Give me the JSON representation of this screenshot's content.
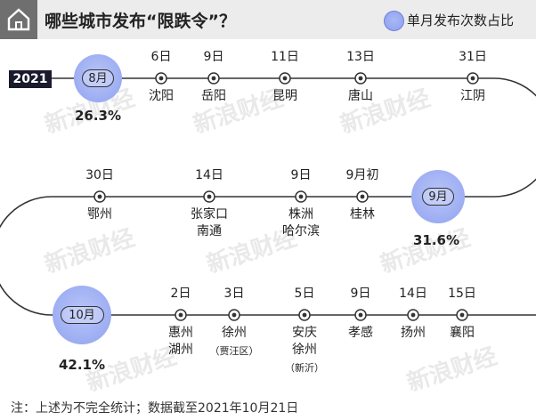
{
  "header": {
    "title": "哪些城市发布“限跌令”？",
    "legend_label": "单月发布次数占比"
  },
  "year_label": "2021",
  "footnote": "注：上述为不完全统计；数据截至2021年10月21日",
  "watermark": "新浪财经",
  "colors": {
    "bubble": "#9aabf2",
    "bubble_edge": "#6f7fd8",
    "line": "#333333",
    "header_bg": "#ececec",
    "icon_bg": "#6f6f6f"
  },
  "months": [
    {
      "label": "8月",
      "share": "26.3%"
    },
    {
      "label": "9月",
      "share": "31.6%"
    },
    {
      "label": "10月",
      "share": "42.1%"
    }
  ],
  "events": [
    {
      "date": "6日",
      "city": "沈阳",
      "note": ""
    },
    {
      "date": "9日",
      "city": "岳阳",
      "note": ""
    },
    {
      "date": "11日",
      "city": "昆明",
      "note": ""
    },
    {
      "date": "13日",
      "city": "唐山",
      "note": ""
    },
    {
      "date": "31日",
      "city": "江阴",
      "note": ""
    },
    {
      "date": "30日",
      "city": "鄂州",
      "note": ""
    },
    {
      "date": "14日",
      "city": "张家口\n南通",
      "note": ""
    },
    {
      "date": "9日",
      "city": "株洲\n哈尔滨",
      "note": ""
    },
    {
      "date": "9月初",
      "city": "桂林",
      "note": ""
    },
    {
      "date": "2日",
      "city": "惠州\n湖州",
      "note": ""
    },
    {
      "date": "3日",
      "city": "徐州",
      "note": "（贾汪区）"
    },
    {
      "date": "5日",
      "city": "安庆\n徐州",
      "note": "（新沂）"
    },
    {
      "date": "9日",
      "city": "孝感",
      "note": ""
    },
    {
      "date": "14日",
      "city": "扬州",
      "note": ""
    },
    {
      "date": "15日",
      "city": "襄阳",
      "note": ""
    }
  ]
}
